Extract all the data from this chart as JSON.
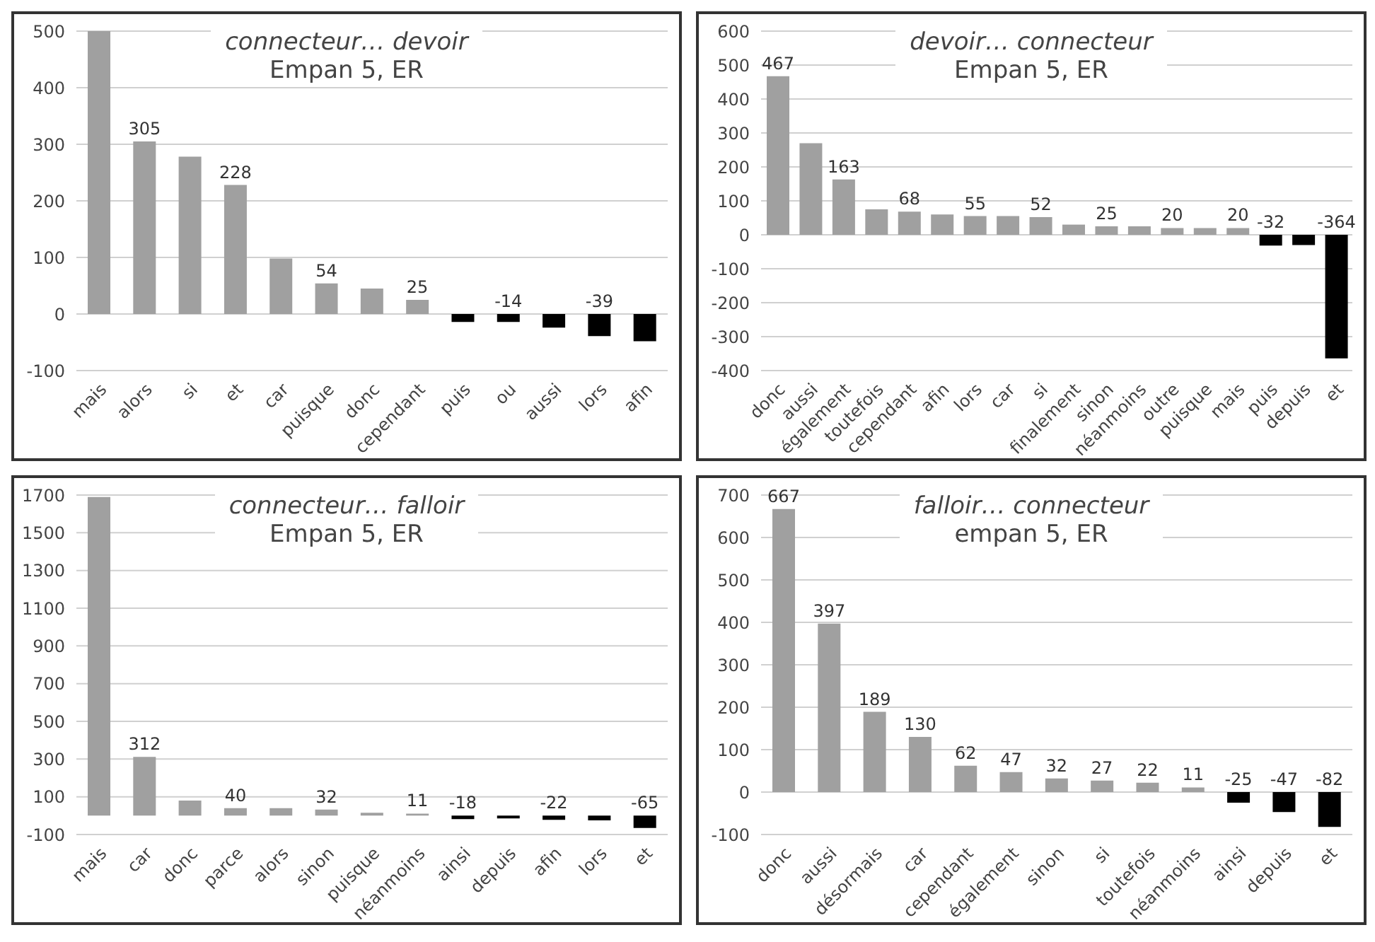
{
  "chart_data": [
    {
      "type": "bar",
      "title": "connecteur… devoir",
      "subtitle": "Empan 5, ER",
      "categories": [
        "mais",
        "alors",
        "si",
        "et",
        "car",
        "puisque",
        "donc",
        "cependant",
        "puis",
        "ou",
        "aussi",
        "lors",
        "afin"
      ],
      "values": [
        500,
        305,
        278,
        228,
        98,
        54,
        45,
        25,
        -14,
        -14,
        -24,
        -39,
        -48
      ],
      "value_labels": [
        null,
        "305",
        null,
        "228",
        null,
        "54",
        null,
        "25",
        null,
        "-14",
        null,
        "-39",
        null
      ],
      "colors": [
        "#a0a0a0",
        "#a0a0a0",
        "#a0a0a0",
        "#a0a0a0",
        "#a0a0a0",
        "#a0a0a0",
        "#a0a0a0",
        "#a0a0a0",
        "#000000",
        "#000000",
        "#000000",
        "#000000",
        "#000000"
      ],
      "ylim": [
        -100,
        500
      ],
      "yticks": [
        -100,
        0,
        100,
        200,
        300,
        400,
        500
      ],
      "grid": "y"
    },
    {
      "type": "bar",
      "title": "devoir… connecteur",
      "subtitle": "Empan 5, ER",
      "categories": [
        "donc",
        "aussi",
        "également",
        "toutefois",
        "cependant",
        "afin",
        "lors",
        "car",
        "si",
        "finalement",
        "sinon",
        "néanmoins",
        "outre",
        "puisque",
        "mais",
        "puis",
        "depuis",
        "et"
      ],
      "values": [
        467,
        270,
        163,
        75,
        68,
        60,
        55,
        55,
        52,
        30,
        25,
        25,
        20,
        20,
        20,
        -32,
        -30,
        -364
      ],
      "value_labels": [
        "467",
        null,
        "163",
        null,
        "68",
        null,
        "55",
        null,
        "52",
        null,
        "25",
        null,
        "20",
        null,
        "20",
        "-32",
        null,
        "-364"
      ],
      "colors": [
        "#a0a0a0",
        "#a0a0a0",
        "#a0a0a0",
        "#a0a0a0",
        "#a0a0a0",
        "#a0a0a0",
        "#a0a0a0",
        "#a0a0a0",
        "#a0a0a0",
        "#a0a0a0",
        "#a0a0a0",
        "#a0a0a0",
        "#a0a0a0",
        "#a0a0a0",
        "#a0a0a0",
        "#000000",
        "#000000",
        "#000000"
      ],
      "ylim": [
        -400,
        600
      ],
      "yticks": [
        -400,
        -300,
        -200,
        -100,
        0,
        100,
        200,
        300,
        400,
        500,
        600
      ],
      "grid": "y"
    },
    {
      "type": "bar",
      "title": "connecteur… falloir",
      "subtitle": "Empan 5, ER",
      "categories": [
        "mais",
        "car",
        "donc",
        "parce",
        "alors",
        "sinon",
        "puisque",
        "néanmoins",
        "ainsi",
        "depuis",
        "afin",
        "lors",
        "et"
      ],
      "values": [
        1690,
        312,
        80,
        40,
        40,
        32,
        15,
        11,
        -18,
        -15,
        -22,
        -25,
        -65
      ],
      "value_labels": [
        null,
        "312",
        null,
        "40",
        null,
        "32",
        null,
        "11",
        "-18",
        null,
        "-22",
        null,
        "-65"
      ],
      "colors": [
        "#a0a0a0",
        "#a0a0a0",
        "#a0a0a0",
        "#a0a0a0",
        "#a0a0a0",
        "#a0a0a0",
        "#a0a0a0",
        "#a0a0a0",
        "#000000",
        "#000000",
        "#000000",
        "#000000",
        "#000000"
      ],
      "ylim": [
        -100,
        1700
      ],
      "yticks": [
        -100,
        100,
        300,
        500,
        700,
        900,
        1100,
        1300,
        1500,
        1700
      ],
      "grid": "y"
    },
    {
      "type": "bar",
      "title": "falloir… connecteur",
      "subtitle": "empan 5, ER",
      "categories": [
        "donc",
        "aussi",
        "désormais",
        "car",
        "cependant",
        "également",
        "sinon",
        "si",
        "toutefois",
        "néanmoins",
        "ainsi",
        "depuis",
        "et"
      ],
      "values": [
        667,
        397,
        189,
        130,
        62,
        47,
        32,
        27,
        22,
        11,
        -25,
        -47,
        -82
      ],
      "data_labels": true,
      "colors": [
        "#a0a0a0",
        "#a0a0a0",
        "#a0a0a0",
        "#a0a0a0",
        "#a0a0a0",
        "#a0a0a0",
        "#a0a0a0",
        "#a0a0a0",
        "#a0a0a0",
        "#a0a0a0",
        "#000000",
        "#000000",
        "#000000"
      ],
      "ylim": [
        -100,
        700
      ],
      "yticks": [
        -100,
        0,
        100,
        200,
        300,
        400,
        500,
        600,
        700
      ],
      "grid": "y"
    }
  ]
}
